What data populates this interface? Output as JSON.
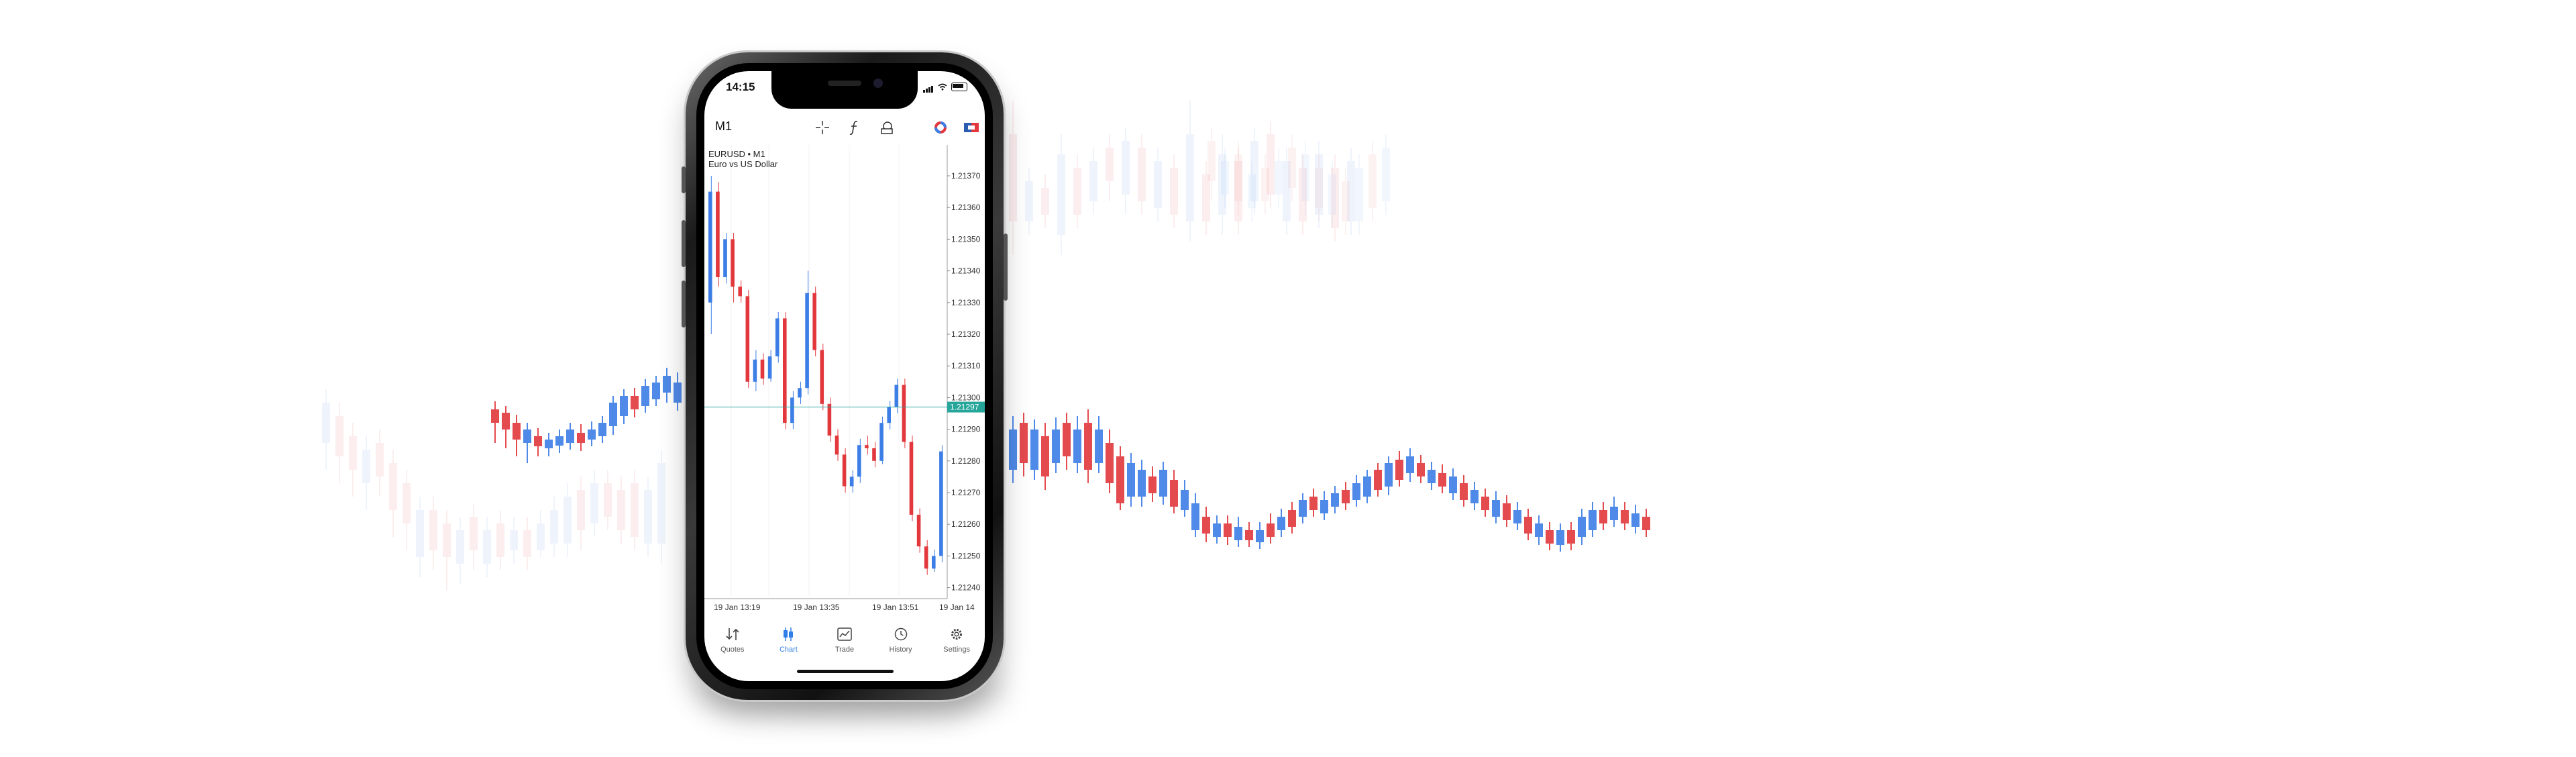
{
  "status_bar": {
    "time": "14:15"
  },
  "toolbar": {
    "timeframe": "M1",
    "icons": [
      "crosshair-icon",
      "function-icon",
      "objects-icon",
      "lifebuoy-icon",
      "flag-icon"
    ]
  },
  "chart": {
    "symbol_line": "EURUSD • M1",
    "description": "Euro vs US Dollar",
    "current_price": "1.21297",
    "y_axis": [
      "1.21370",
      "1.21360",
      "1.21350",
      "1.21340",
      "1.21330",
      "1.21320",
      "1.21310",
      "1.21300",
      "1.21290",
      "1.21280",
      "1.21270",
      "1.21260",
      "1.21250",
      "1.21240"
    ],
    "x_axis": [
      "19 Jan 13:19",
      "19 Jan 13:35",
      "19 Jan 13:51",
      "19 Jan 14"
    ],
    "colors": {
      "bull": "#3c7ee6",
      "bear": "#e2383d",
      "price_line": "#26a69a"
    }
  },
  "tabs": [
    {
      "label": "Quotes",
      "icon": "quotes-icon",
      "active": false
    },
    {
      "label": "Chart",
      "icon": "chart-icon",
      "active": true
    },
    {
      "label": "Trade",
      "icon": "trade-icon",
      "active": false
    },
    {
      "label": "History",
      "icon": "history-icon",
      "active": false
    },
    {
      "label": "Settings",
      "icon": "settings-icon",
      "active": false
    }
  ]
}
